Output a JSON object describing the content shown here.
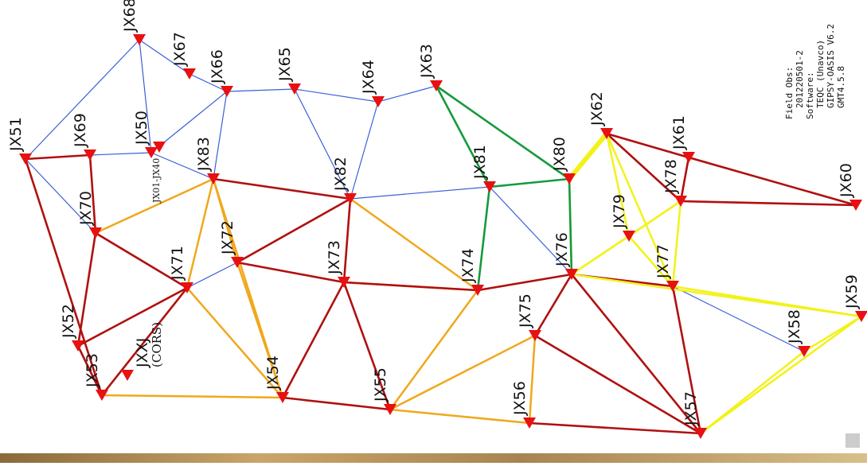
{
  "nodes": [
    {
      "label": "JX51"
    },
    {
      "label": "JX69"
    },
    {
      "label": "JX50"
    },
    {
      "label": "JX68"
    },
    {
      "label": "JX67"
    },
    {
      "label": "JX66"
    },
    {
      "label": "JX65"
    },
    {
      "label": "JX64"
    },
    {
      "label": "JX63"
    },
    {
      "label": "JX83"
    },
    {
      "label": "JX01-JX40"
    },
    {
      "label": "JX82"
    },
    {
      "label": "JX81"
    },
    {
      "label": "JX80"
    },
    {
      "label": "JX62"
    },
    {
      "label": "JX61"
    },
    {
      "label": "JX60"
    },
    {
      "label": "JX78"
    },
    {
      "label": "JX79"
    },
    {
      "label": "JX76"
    },
    {
      "label": "JX77"
    },
    {
      "label": "JX59"
    },
    {
      "label": "JX58"
    },
    {
      "label": "JX57"
    },
    {
      "label": "JX56"
    },
    {
      "label": "JX55"
    },
    {
      "label": "JX75"
    },
    {
      "label": "JX74"
    },
    {
      "label": "JX73"
    },
    {
      "label": "JX72"
    },
    {
      "label": "JX71"
    },
    {
      "label": "JX70"
    },
    {
      "label": "JX52"
    },
    {
      "label": "JX53"
    },
    {
      "label": "JX54"
    },
    {
      "label": "JXXJ",
      "sublabel": "(CORS)"
    }
  ],
  "info": {
    "lines": [
      "Field Obs:",
      "201220501-2",
      "Software:",
      "TEQC (Unavco)",
      "GIPSY-OASIS V6.2",
      "GMT4.5.8"
    ]
  }
}
